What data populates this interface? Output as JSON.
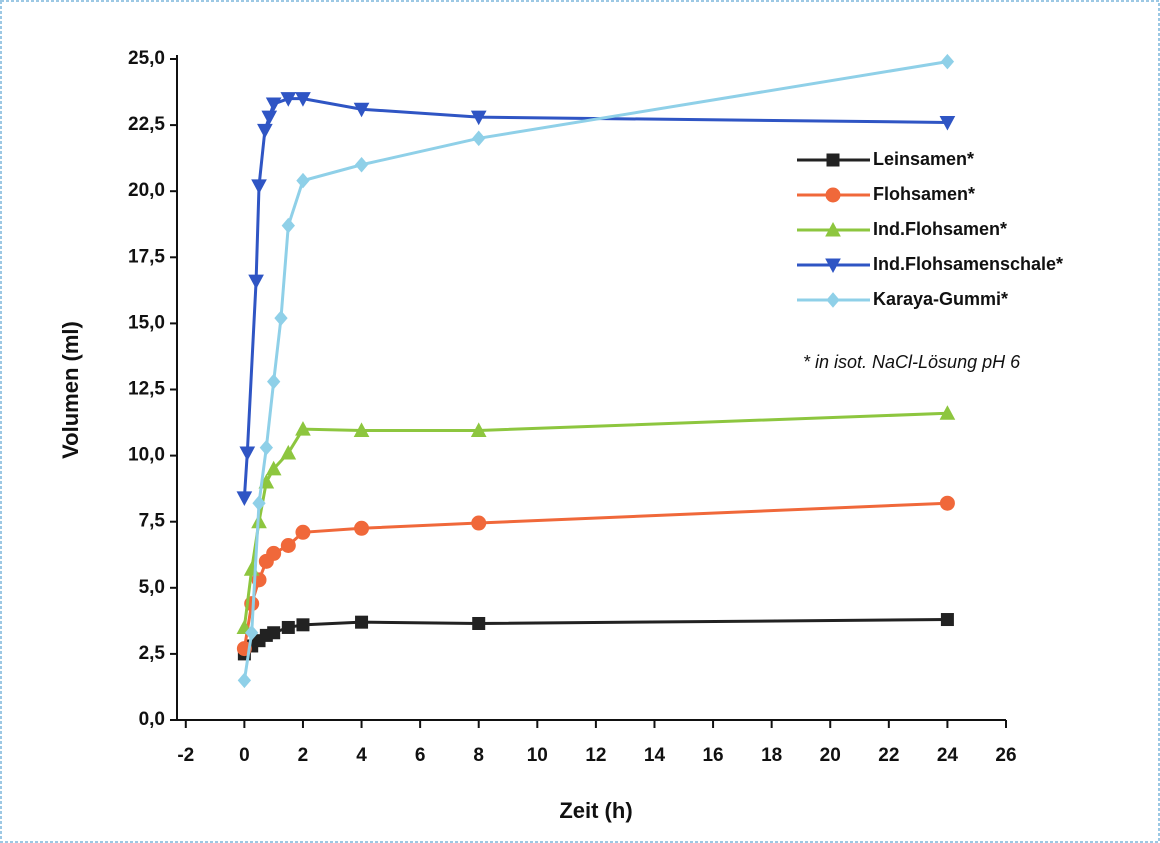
{
  "chart_data": {
    "type": "line",
    "xlabel": "Zeit (h)",
    "ylabel": "Volumen (ml)",
    "annotation": "* in isot. NaCl-Lösung pH 6",
    "xlim": [
      -2.3,
      26
    ],
    "ylim": [
      0,
      25
    ],
    "xticks": [
      -2,
      0,
      2,
      4,
      6,
      8,
      10,
      12,
      14,
      16,
      18,
      20,
      22,
      24,
      26
    ],
    "yticks": [
      {
        "value": 0,
        "label": "0,0"
      },
      {
        "value": 2.5,
        "label": "2,5"
      },
      {
        "value": 5,
        "label": "5,0"
      },
      {
        "value": 7.5,
        "label": "7,5"
      },
      {
        "value": 10,
        "label": "10,0"
      },
      {
        "value": 12.5,
        "label": "12,5"
      },
      {
        "value": 15,
        "label": "15,0"
      },
      {
        "value": 17.5,
        "label": "17,5"
      },
      {
        "value": 20,
        "label": "20,0"
      },
      {
        "value": 22.5,
        "label": "22,5"
      },
      {
        "value": 25,
        "label": "25,0"
      }
    ],
    "series": [
      {
        "name": "Leinsamen*",
        "color": "#222222",
        "marker": "square",
        "x": [
          0,
          0.25,
          0.5,
          0.75,
          1,
          1.5,
          2,
          4,
          8,
          24
        ],
        "values": [
          2.5,
          2.8,
          3.0,
          3.2,
          3.3,
          3.5,
          3.6,
          3.7,
          3.65,
          3.8
        ]
      },
      {
        "name": "Flohsamen*",
        "color": "#f0683a",
        "marker": "circle",
        "x": [
          0,
          0.25,
          0.5,
          0.75,
          1,
          1.5,
          2,
          4,
          8,
          24
        ],
        "values": [
          2.7,
          4.4,
          5.3,
          6.0,
          6.3,
          6.6,
          7.1,
          7.25,
          7.45,
          8.2
        ]
      },
      {
        "name": "Ind.Flohsamen*",
        "color": "#8dc63f",
        "marker": "triangle-up",
        "x": [
          0,
          0.25,
          0.5,
          0.75,
          1,
          1.5,
          2,
          4,
          8,
          24
        ],
        "values": [
          3.5,
          5.7,
          7.5,
          9.0,
          9.5,
          10.1,
          11.0,
          10.95,
          10.95,
          11.6
        ]
      },
      {
        "name": "Ind.Flohsamenschale*",
        "color": "#2f55c4",
        "marker": "triangle-down",
        "x": [
          0,
          0.1,
          0.4,
          0.5,
          0.7,
          0.85,
          1,
          1.5,
          2,
          4,
          8,
          24
        ],
        "values": [
          8.4,
          10.1,
          16.6,
          20.2,
          22.3,
          22.8,
          23.3,
          23.5,
          23.5,
          23.1,
          22.8,
          22.6
        ]
      },
      {
        "name": "Karaya-Gummi*",
        "color": "#8fd0e8",
        "marker": "diamond",
        "x": [
          0,
          0.25,
          0.5,
          0.75,
          1,
          1.25,
          1.5,
          2,
          4,
          8,
          24
        ],
        "values": [
          1.5,
          3.3,
          8.2,
          10.3,
          12.8,
          15.2,
          18.7,
          20.4,
          21.0,
          22.0,
          24.9
        ]
      }
    ]
  }
}
